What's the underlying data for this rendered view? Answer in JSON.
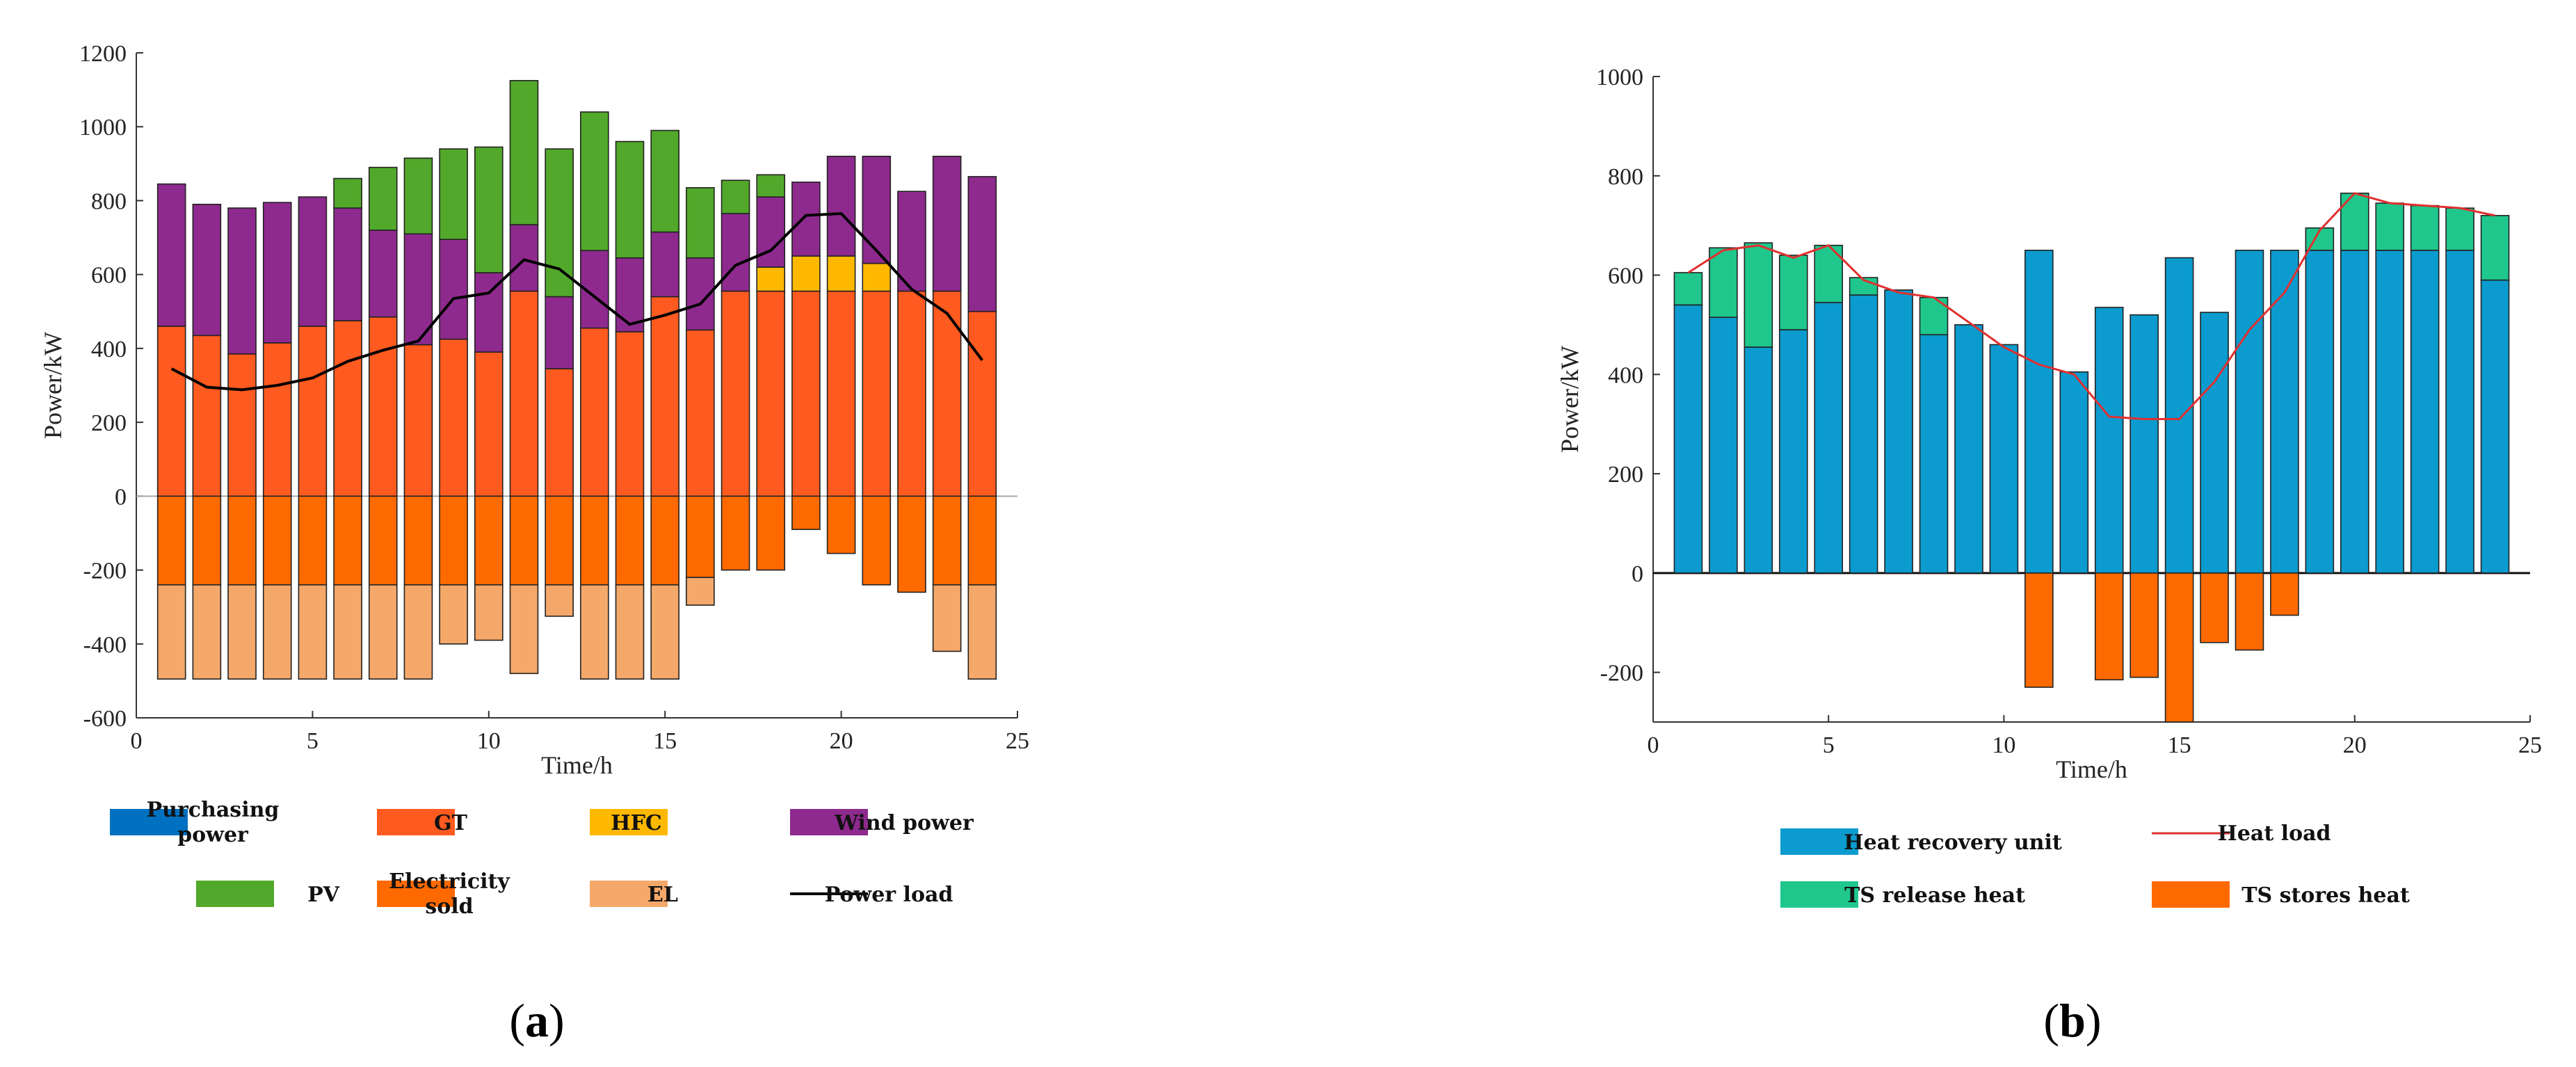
{
  "chart_data": [
    {
      "id": "a",
      "type": "bar",
      "caption_open": "(",
      "caption_letter": "a",
      "caption_close": ")",
      "xlabel": "Time/h",
      "ylabel": "Power/kW",
      "xlim": [
        0,
        25
      ],
      "ylim": [
        -600,
        1200
      ],
      "xticks": [
        0,
        5,
        10,
        15,
        20,
        25
      ],
      "yticks": [
        -600,
        -400,
        -200,
        0,
        200,
        400,
        600,
        800,
        1000,
        1200
      ],
      "x": [
        1,
        2,
        3,
        4,
        5,
        6,
        7,
        8,
        9,
        10,
        11,
        12,
        13,
        14,
        15,
        16,
        17,
        18,
        19,
        20,
        21,
        22,
        23,
        24
      ],
      "series": [
        {
          "name": "Purchasing power",
          "color": "#0070C0",
          "values": [
            0,
            0,
            0,
            0,
            0,
            0,
            0,
            0,
            0,
            0,
            0,
            0,
            0,
            0,
            0,
            0,
            0,
            0,
            0,
            0,
            0,
            0,
            0,
            0
          ]
        },
        {
          "name": "GT",
          "color": "#FF5A1F",
          "values": [
            460,
            435,
            385,
            415,
            460,
            475,
            485,
            410,
            425,
            390,
            555,
            345,
            455,
            445,
            540,
            450,
            555,
            555,
            555,
            555,
            555,
            555,
            555,
            500
          ]
        },
        {
          "name": "HFC",
          "color": "#FFB800",
          "values": [
            0,
            0,
            0,
            0,
            0,
            0,
            0,
            0,
            0,
            0,
            0,
            0,
            0,
            0,
            0,
            0,
            0,
            65,
            95,
            95,
            75,
            0,
            0,
            0
          ]
        },
        {
          "name": "Wind power",
          "color": "#8E2A8E",
          "values": [
            385,
            355,
            395,
            380,
            350,
            305,
            235,
            300,
            270,
            215,
            180,
            195,
            210,
            200,
            175,
            195,
            210,
            190,
            200,
            270,
            290,
            270,
            365,
            365
          ]
        },
        {
          "name": "PV",
          "color": "#52A82A",
          "values": [
            0,
            0,
            0,
            0,
            0,
            80,
            170,
            205,
            245,
            340,
            390,
            400,
            375,
            315,
            275,
            190,
            90,
            60,
            0,
            0,
            0,
            0,
            0,
            0
          ]
        },
        {
          "name": "Electricity sold",
          "color": "#FF6A00",
          "values": [
            -240,
            -240,
            -240,
            -240,
            -240,
            -240,
            -240,
            -240,
            -240,
            -240,
            -240,
            -240,
            -240,
            -240,
            -240,
            -220,
            -200,
            -200,
            -90,
            -155,
            -240,
            -260,
            -240,
            -240
          ]
        },
        {
          "name": "EL",
          "color": "#F4A86A",
          "values": [
            -255,
            -255,
            -255,
            -255,
            -255,
            -255,
            -255,
            -255,
            -160,
            -150,
            -240,
            -85,
            -255,
            -255,
            -255,
            -75,
            0,
            0,
            0,
            0,
            0,
            0,
            -180,
            -255
          ]
        },
        {
          "name": "Power load",
          "color": "#000000",
          "line": true,
          "values": [
            345,
            295,
            288,
            300,
            320,
            365,
            395,
            420,
            535,
            550,
            640,
            615,
            540,
            465,
            490,
            520,
            625,
            665,
            760,
            765,
            665,
            560,
            495,
            368
          ]
        }
      ],
      "legend": [
        {
          "name": "Purchasing",
          "name2": "power",
          "color": "#0070C0",
          "kind": "box"
        },
        {
          "name": "GT",
          "name2": "",
          "color": "#FF5A1F",
          "kind": "box"
        },
        {
          "name": "HFC",
          "name2": "",
          "color": "#FFB800",
          "kind": "box"
        },
        {
          "name": "Wind power",
          "name2": "",
          "color": "#8E2A8E",
          "kind": "box"
        },
        {
          "name": "PV",
          "name2": "",
          "color": "#52A82A",
          "kind": "box"
        },
        {
          "name": "Electricity",
          "name2": "sold",
          "color": "#FF6A00",
          "kind": "box"
        },
        {
          "name": "EL",
          "name2": "",
          "color": "#F4A86A",
          "kind": "box"
        },
        {
          "name": "Power load",
          "name2": "",
          "color": "#000000",
          "kind": "line"
        }
      ]
    },
    {
      "id": "b",
      "type": "bar",
      "caption_open": "(",
      "caption_letter": "b",
      "caption_close": ")",
      "xlabel": "Time/h",
      "ylabel": "Power/kW",
      "xlim": [
        0,
        25
      ],
      "ylim": [
        -300,
        1000
      ],
      "xticks": [
        0,
        5,
        10,
        15,
        20,
        25
      ],
      "yticks": [
        -200,
        0,
        200,
        400,
        600,
        800,
        1000
      ],
      "x": [
        1,
        2,
        3,
        4,
        5,
        6,
        7,
        8,
        9,
        10,
        11,
        12,
        13,
        14,
        15,
        16,
        17,
        18,
        19,
        20,
        21,
        22,
        23,
        24
      ],
      "series": [
        {
          "name": "Heat recovery unit",
          "color": "#0B9BCF",
          "values": [
            540,
            515,
            455,
            490,
            545,
            560,
            570,
            480,
            500,
            460,
            650,
            405,
            535,
            520,
            635,
            525,
            650,
            650,
            650,
            650,
            650,
            650,
            650,
            590
          ]
        },
        {
          "name": "TS release heat",
          "color": "#1FC78C",
          "values": [
            65,
            140,
            210,
            150,
            115,
            35,
            0,
            75,
            0,
            0,
            0,
            0,
            0,
            0,
            0,
            0,
            0,
            0,
            45,
            115,
            95,
            90,
            85,
            130
          ]
        },
        {
          "name": "TS stores heat",
          "color": "#FF6A00",
          "values": [
            0,
            0,
            0,
            0,
            0,
            0,
            0,
            0,
            0,
            0,
            -230,
            0,
            -215,
            -210,
            -300,
            -140,
            -155,
            -85,
            0,
            0,
            0,
            0,
            0,
            0
          ]
        },
        {
          "name": "Heat load",
          "color": "#E03030",
          "line": true,
          "values": [
            605,
            650,
            660,
            635,
            660,
            590,
            565,
            555,
            505,
            455,
            420,
            400,
            315,
            310,
            310,
            385,
            490,
            565,
            690,
            765,
            745,
            740,
            735,
            720
          ]
        }
      ],
      "legend": [
        {
          "name": "Heat recovery unit",
          "color": "#0B9BCF",
          "kind": "box"
        },
        {
          "name": "Heat load",
          "color": "#E03030",
          "kind": "line"
        },
        {
          "name": "TS release heat",
          "color": "#1FC78C",
          "kind": "box"
        },
        {
          "name": "TS stores heat",
          "color": "#FF6A00",
          "kind": "box"
        }
      ]
    }
  ]
}
